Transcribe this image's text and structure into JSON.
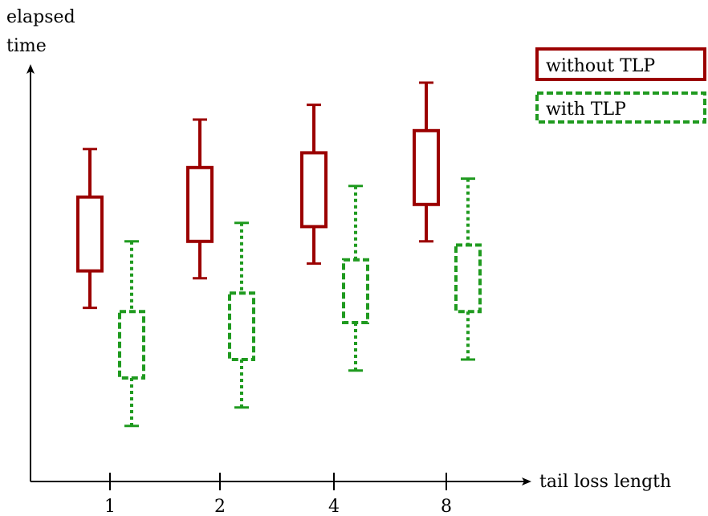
{
  "chart_data": {
    "type": "box",
    "categories": [
      "1",
      "2",
      "4",
      "8"
    ],
    "xlabel": "tail loss length",
    "ylabel_line1": "elapsed",
    "ylabel_line2": "time",
    "ylim": [
      0,
      100
    ],
    "grid": false,
    "legend_position": "top-right",
    "series": [
      {
        "name": "without TLP",
        "color": "#9b0000",
        "style": "solid",
        "boxes": [
          {
            "min": 39,
            "q1": 49,
            "q3": 69,
            "max": 82
          },
          {
            "min": 47,
            "q1": 57,
            "q3": 77,
            "max": 90
          },
          {
            "min": 51,
            "q1": 61,
            "q3": 81,
            "max": 94
          },
          {
            "min": 57,
            "q1": 67,
            "q3": 87,
            "max": 100
          }
        ]
      },
      {
        "name": "with TLP",
        "color": "#1f9a1f",
        "style": "dashed",
        "boxes": [
          {
            "min": 7,
            "q1": 20,
            "q3": 38,
            "max": 57
          },
          {
            "min": 12,
            "q1": 25,
            "q3": 43,
            "max": 62
          },
          {
            "min": 22,
            "q1": 35,
            "q3": 52,
            "max": 72
          },
          {
            "min": 25,
            "q1": 38,
            "q3": 56,
            "max": 74
          }
        ]
      }
    ]
  }
}
